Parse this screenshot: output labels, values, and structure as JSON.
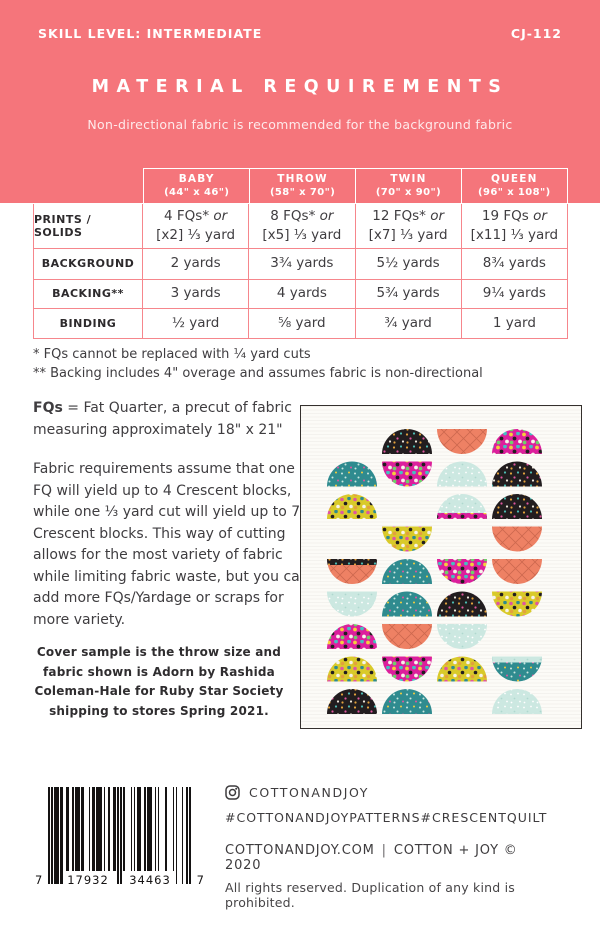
{
  "colors": {
    "coral_banner": "#F5757B",
    "table_border": "#F6868C",
    "text_dark": "#3F3D40",
    "panel_border": "#34302D",
    "panel_bg": "#FCFBF7"
  },
  "banner": {
    "skill_level": "SKILL LEVEL: INTERMEDIATE",
    "pattern_number": "CJ-112",
    "title": "MATERIAL REQUIREMENTS",
    "subtitle": "Non-directional fabric is recommended for the background fabric"
  },
  "table": {
    "columns": [
      {
        "name": "BABY",
        "size": "(44\" x 46\")"
      },
      {
        "name": "THROW",
        "size": "(58\" x 70\")"
      },
      {
        "name": "TWIN",
        "size": "(70\" x 90\")"
      },
      {
        "name": "QUEEN",
        "size": "(96\" x 108\")"
      }
    ],
    "rows": [
      {
        "label": "PRINTS / SOLIDS",
        "cells": [
          {
            "l1": "4 FQs*",
            "or": "or",
            "l2": "[x2] ⅓ yard"
          },
          {
            "l1": "8 FQs*",
            "or": "or",
            "l2": "[x5] ⅓ yard"
          },
          {
            "l1": "12 FQs*",
            "or": "or",
            "l2": "[x7] ⅓ yard"
          },
          {
            "l1": "19 FQs",
            "or": "or",
            "l2": "[x11] ⅓ yard"
          }
        ]
      },
      {
        "label": "BACKGROUND",
        "cells": [
          "2 yards",
          "3¾ yards",
          "5½ yards",
          "8¾ yards"
        ]
      },
      {
        "label": "BACKING**",
        "cells": [
          "3 yards",
          "4 yards",
          "5¾ yards",
          "9¼ yards"
        ]
      },
      {
        "label": "BINDING",
        "cells": [
          "½ yard",
          "⅝ yard",
          "¾ yard",
          "1 yard"
        ]
      }
    ]
  },
  "notes": {
    "footnote1": "* FQs cannot be replaced with ¼ yard cuts",
    "footnote2": "** Backing includes 4\" overage and assumes fabric is non-directional",
    "fq_bold": "FQs",
    "fq_rest": " = Fat Quarter, a precut of fabric measuring approximately 18\" x 21\"",
    "paragraph": "Fabric requirements assume that one FQ will yield up to 4 Crescent blocks, while one ⅓ yard cut will yield up to 7 Crescent blocks. This way of cutting allows for the most variety of fabric while limiting fabric waste, but you can add more FQs/Yardage or scraps for more variety.",
    "cover_note": "Cover sample is the throw size and fabric shown is Adorn by Rashida Coleman-Hale for Ruby Star Society shipping to stores Spring 2021."
  },
  "quilt": {
    "grid": {
      "cols": 4,
      "rows": 9,
      "col_start": 51,
      "col_pitch": 55,
      "band_start": 23,
      "band_pitch": 32.5,
      "band_height": 25,
      "radius": 25,
      "strip_height": 6
    },
    "palette": {
      "black": {
        "base": "#221D1F",
        "texture": "dots",
        "dot_r": 1.1,
        "speckles": [
          "#E3A13C",
          "#4CBCB4",
          "#E0569F",
          "#EFE9DC",
          "#E3A13C"
        ]
      },
      "coral": {
        "base": "#EE8164",
        "texture": "cross",
        "dot_r": 0,
        "speckles": []
      },
      "magenta": {
        "base": "#DC1F9C",
        "texture": "dots",
        "dot_r": 1.9,
        "speckles": [
          "#F6CE3B",
          "#45C0C0",
          "#221D1F",
          "#F7F3EA",
          "#6FCF6A"
        ]
      },
      "teal": {
        "base": "#2F8B8F",
        "texture": "dots",
        "dot_r": 1.0,
        "speckles": [
          "#CBE7E0",
          "#F6CE3B",
          "#CBE7E0",
          "#E0569F",
          "#CBE7E0"
        ]
      },
      "mint": {
        "base": "#CCE8E1",
        "texture": "dots",
        "dot_r": 0.9,
        "speckles": [
          "#FFFFFF",
          "#FFFFFF",
          "#AFD8CF",
          "#FFFFFF",
          "#FFFFFF"
        ]
      },
      "yellow": {
        "base": "#D9CA2A",
        "texture": "dots",
        "dot_r": 1.8,
        "speckles": [
          "#E0569F",
          "#2F8B8F",
          "#221D1F",
          "#F7F3EA",
          "#E3A13C"
        ]
      }
    },
    "blocks": [
      {
        "r": 1,
        "c": 2,
        "dir": "up",
        "color": "black"
      },
      {
        "r": 1,
        "c": 3,
        "dir": "down",
        "color": "coral"
      },
      {
        "r": 1,
        "c": 4,
        "dir": "up",
        "color": "magenta"
      },
      {
        "r": 2,
        "c": 1,
        "dir": "up",
        "color": "teal"
      },
      {
        "r": 2,
        "c": 2,
        "dir": "down",
        "color": "magenta"
      },
      {
        "r": 2,
        "c": 3,
        "dir": "up",
        "color": "mint"
      },
      {
        "r": 2,
        "c": 4,
        "dir": "up",
        "color": "black"
      },
      {
        "r": 3,
        "c": 1,
        "dir": "up",
        "color": "yellow"
      },
      {
        "r": 3,
        "c": 3,
        "dir": "up",
        "color": "mint",
        "strip": "magenta"
      },
      {
        "r": 3,
        "c": 4,
        "dir": "up",
        "color": "black"
      },
      {
        "r": 4,
        "c": 2,
        "dir": "down",
        "color": "yellow"
      },
      {
        "r": 4,
        "c": 4,
        "dir": "down",
        "color": "coral"
      },
      {
        "r": 5,
        "c": 1,
        "dir": "down",
        "color": "coral",
        "strip": "black"
      },
      {
        "r": 5,
        "c": 2,
        "dir": "up",
        "color": "teal"
      },
      {
        "r": 5,
        "c": 3,
        "dir": "down",
        "color": "magenta"
      },
      {
        "r": 5,
        "c": 4,
        "dir": "down",
        "color": "coral"
      },
      {
        "r": 6,
        "c": 1,
        "dir": "down",
        "color": "mint"
      },
      {
        "r": 6,
        "c": 2,
        "dir": "up",
        "color": "teal"
      },
      {
        "r": 6,
        "c": 3,
        "dir": "up",
        "color": "black"
      },
      {
        "r": 6,
        "c": 4,
        "dir": "down",
        "color": "yellow"
      },
      {
        "r": 7,
        "c": 1,
        "dir": "up",
        "color": "magenta"
      },
      {
        "r": 7,
        "c": 2,
        "dir": "down",
        "color": "coral"
      },
      {
        "r": 7,
        "c": 3,
        "dir": "down",
        "color": "mint"
      },
      {
        "r": 8,
        "c": 1,
        "dir": "up",
        "color": "yellow"
      },
      {
        "r": 8,
        "c": 2,
        "dir": "down",
        "color": "magenta"
      },
      {
        "r": 8,
        "c": 3,
        "dir": "up",
        "color": "yellow"
      },
      {
        "r": 8,
        "c": 4,
        "dir": "down",
        "color": "teal",
        "strip": "mint"
      },
      {
        "r": 9,
        "c": 1,
        "dir": "up",
        "color": "black"
      },
      {
        "r": 9,
        "c": 2,
        "dir": "up",
        "color": "teal"
      },
      {
        "r": 9,
        "c": 4,
        "dir": "up",
        "color": "mint"
      }
    ]
  },
  "barcode": {
    "modules": "10101110110011001011101100010110111101001001101010100001010111001011100101000010000101000100101",
    "digit_left": "7",
    "digit_group1": "17932",
    "digit_group2": "34463",
    "digit_right": "7"
  },
  "footer": {
    "instagram_handle": "COTTONANDJOY",
    "hashtag_patterns": "#COTTONANDJOYPATTERNS",
    "hashtag_quilt": "#CRESCENTQUILT",
    "website": "COTTONANDJOY.COM",
    "divider": "|",
    "copyright": "COTTON + JOY © 2020",
    "rights": "All rights reserved. Duplication of any kind is prohibited."
  }
}
